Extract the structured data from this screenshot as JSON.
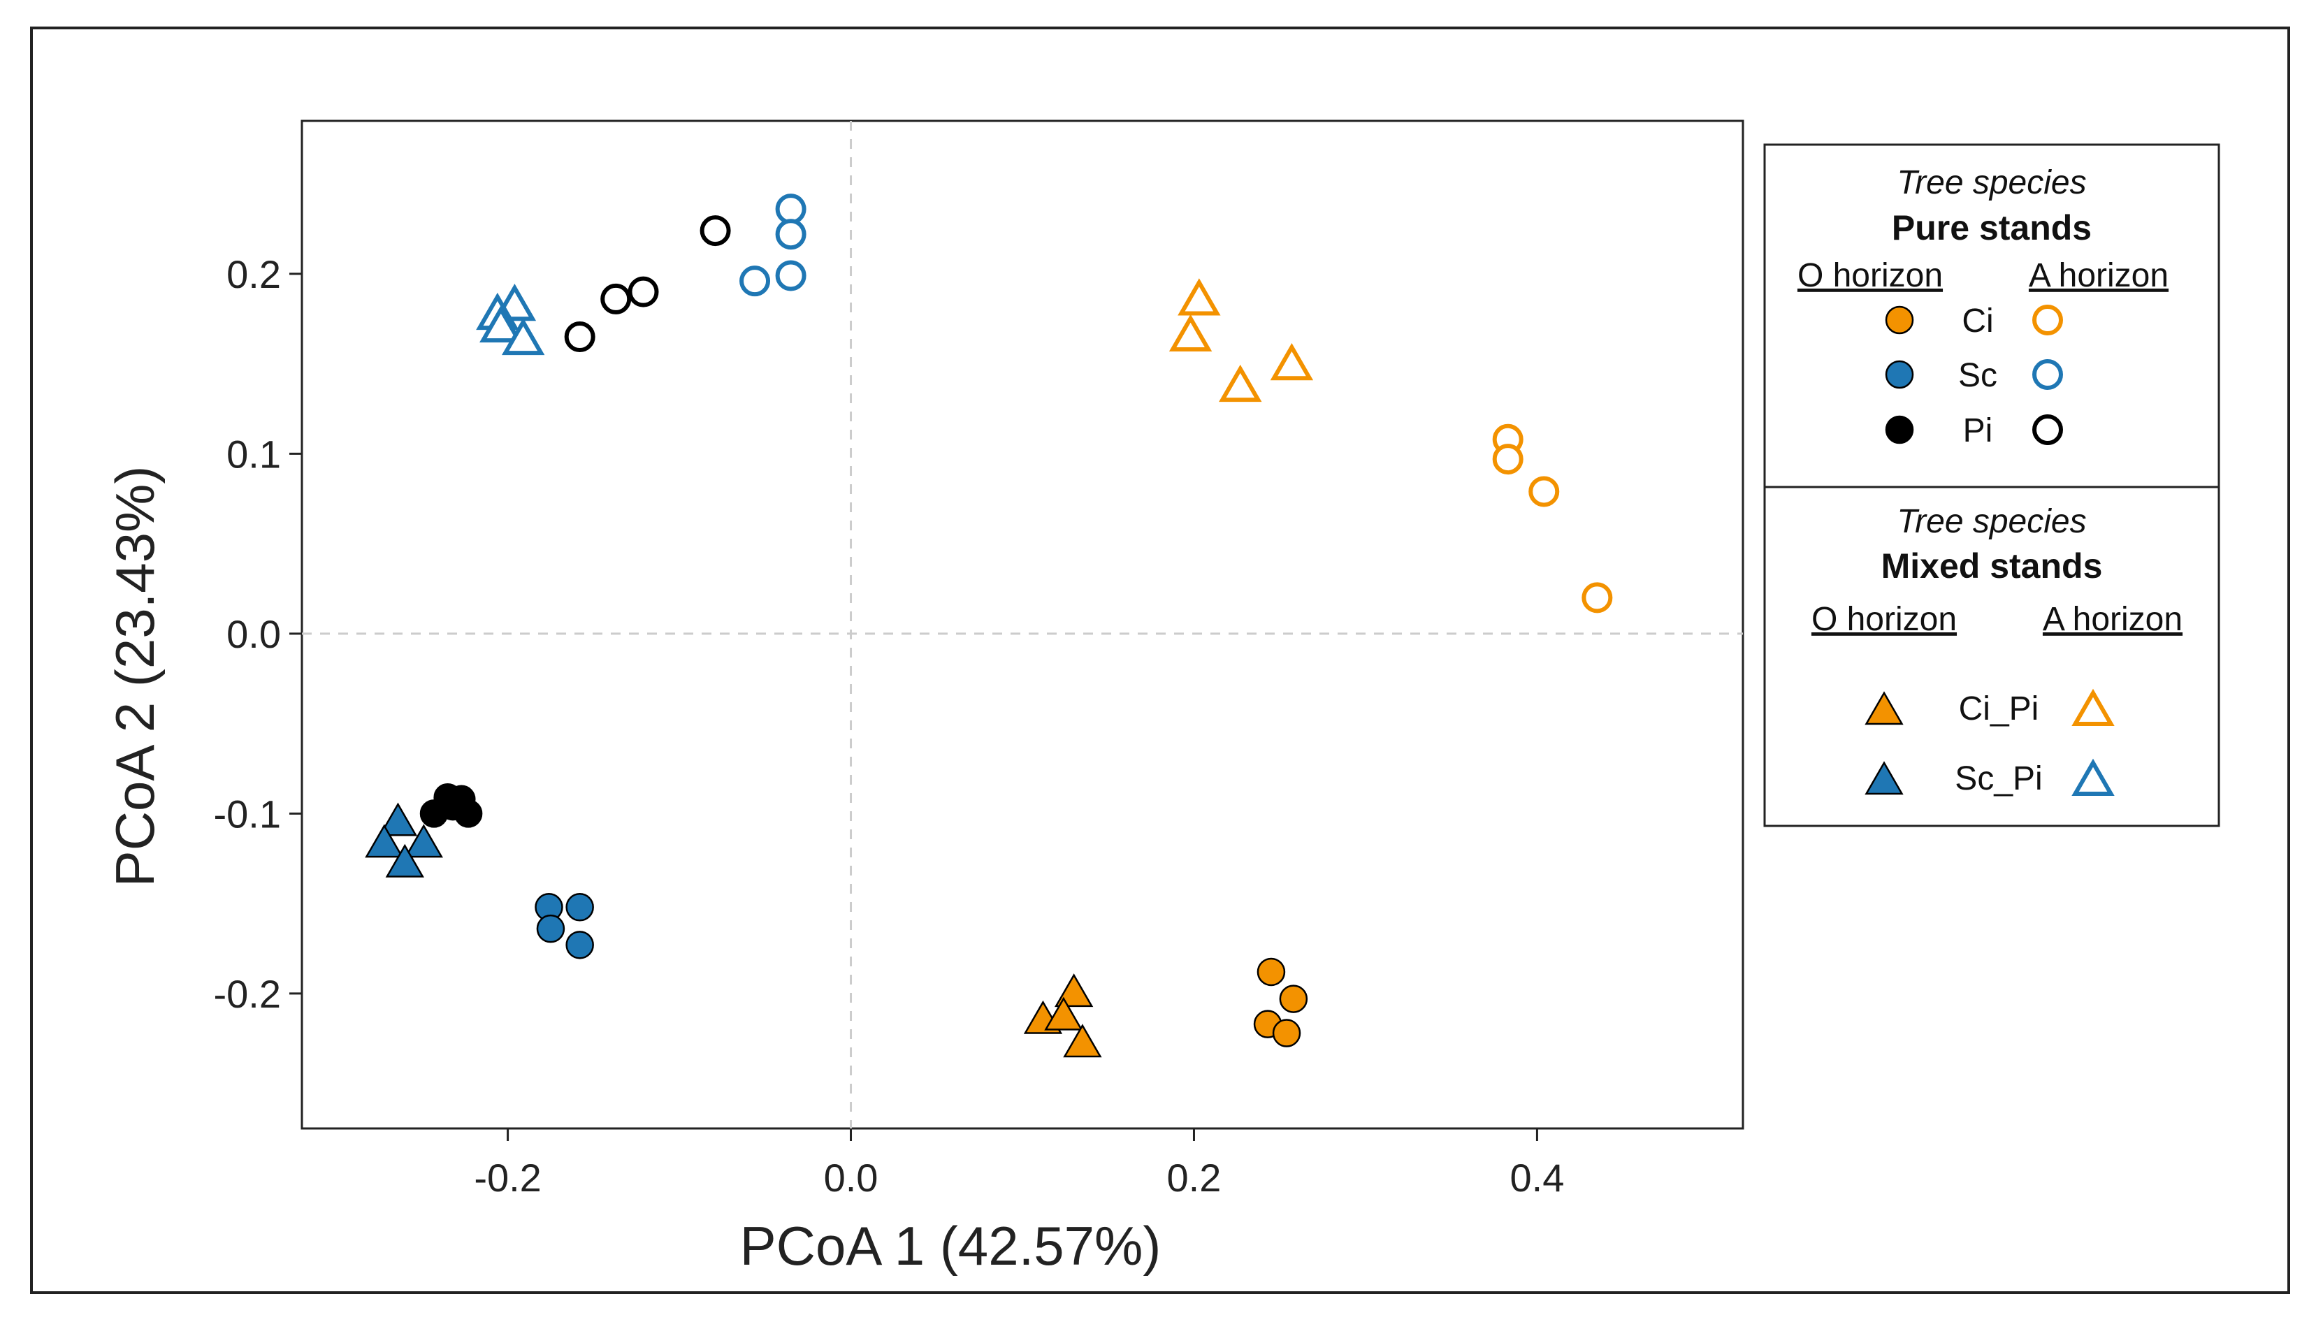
{
  "chart_data": {
    "type": "scatter",
    "xlabel": "PCoA 1 (42.57%)",
    "ylabel": "PCoA 2 (23.43%)",
    "xlim": [
      -0.32,
      0.52
    ],
    "ylim": [
      -0.275,
      0.285
    ],
    "xticks": [
      -0.2,
      0.0,
      0.2,
      0.4
    ],
    "yticks": [
      -0.2,
      -0.1,
      0.0,
      0.1,
      0.2
    ],
    "xtick_labels": [
      "-0.2",
      "0.0",
      "0.2",
      "0.4"
    ],
    "ytick_labels": [
      "-0.2",
      "-0.1",
      "0.0",
      "0.1",
      "0.2"
    ],
    "reference_lines": {
      "x": 0.0,
      "y": 0.0
    },
    "colors": {
      "Ci": "#f39200",
      "Sc": "#1f77b4",
      "Pi": "#000000"
    },
    "series": [
      {
        "name": "Ci O horizon",
        "stand": "Pure",
        "horizon": "O",
        "species": "Ci",
        "marker": "circle",
        "filled": true,
        "points": [
          [
            0.245,
            -0.188
          ],
          [
            0.258,
            -0.203
          ],
          [
            0.243,
            -0.217
          ],
          [
            0.254,
            -0.222
          ]
        ]
      },
      {
        "name": "Ci A horizon",
        "stand": "Pure",
        "horizon": "A",
        "species": "Ci",
        "marker": "circle",
        "filled": false,
        "points": [
          [
            0.383,
            0.108
          ],
          [
            0.383,
            0.097
          ],
          [
            0.404,
            0.079
          ],
          [
            0.435,
            0.02
          ]
        ]
      },
      {
        "name": "Sc O horizon",
        "stand": "Pure",
        "horizon": "O",
        "species": "Sc",
        "marker": "circle",
        "filled": true,
        "points": [
          [
            -0.176,
            -0.152
          ],
          [
            -0.158,
            -0.152
          ],
          [
            -0.175,
            -0.164
          ],
          [
            -0.158,
            -0.173
          ]
        ]
      },
      {
        "name": "Sc A horizon",
        "stand": "Pure",
        "horizon": "A",
        "species": "Sc",
        "marker": "circle",
        "filled": false,
        "points": [
          [
            -0.035,
            0.236
          ],
          [
            -0.035,
            0.222
          ],
          [
            -0.056,
            0.196
          ],
          [
            -0.035,
            0.199
          ]
        ]
      },
      {
        "name": "Pi O horizon",
        "stand": "Pure",
        "horizon": "O",
        "species": "Pi",
        "marker": "circle",
        "filled": true,
        "points": [
          [
            -0.235,
            -0.091
          ],
          [
            -0.227,
            -0.092
          ],
          [
            -0.223,
            -0.1
          ],
          [
            -0.243,
            -0.1
          ],
          [
            -0.232,
            -0.096
          ]
        ]
      },
      {
        "name": "Pi A horizon",
        "stand": "Pure",
        "horizon": "A",
        "species": "Pi",
        "marker": "circle",
        "filled": false,
        "points": [
          [
            -0.079,
            0.224
          ],
          [
            -0.137,
            0.186
          ],
          [
            -0.121,
            0.19
          ],
          [
            -0.158,
            0.165
          ]
        ]
      },
      {
        "name": "Ci_Pi O horizon",
        "stand": "Mixed",
        "horizon": "O",
        "species": "Ci_Pi",
        "marker": "triangle",
        "filled": true,
        "points": [
          [
            0.13,
            -0.2
          ],
          [
            0.112,
            -0.215
          ],
          [
            0.124,
            -0.213
          ],
          [
            0.135,
            -0.228
          ]
        ]
      },
      {
        "name": "Ci_Pi A horizon",
        "stand": "Mixed",
        "horizon": "A",
        "species": "Ci_Pi",
        "marker": "triangle",
        "filled": false,
        "points": [
          [
            0.203,
            0.185
          ],
          [
            0.198,
            0.165
          ],
          [
            0.227,
            0.137
          ],
          [
            0.257,
            0.149
          ]
        ]
      },
      {
        "name": "Sc_Pi O horizon",
        "stand": "Mixed",
        "horizon": "O",
        "species": "Sc_Pi",
        "marker": "triangle",
        "filled": true,
        "points": [
          [
            -0.264,
            -0.105
          ],
          [
            -0.272,
            -0.117
          ],
          [
            -0.249,
            -0.117
          ],
          [
            -0.26,
            -0.128
          ]
        ]
      },
      {
        "name": "Sc_Pi A horizon",
        "stand": "Mixed",
        "horizon": "A",
        "species": "Sc_Pi",
        "marker": "triangle",
        "filled": false,
        "points": [
          [
            -0.196,
            0.182
          ],
          [
            -0.206,
            0.177
          ],
          [
            -0.204,
            0.17
          ],
          [
            -0.191,
            0.163
          ]
        ]
      }
    ],
    "legend": {
      "placement": "right",
      "pure": {
        "title_italic": "Tree species",
        "title_bold": "Pure stands",
        "head_o": "O horizon",
        "head_a": "A horizon",
        "entries": [
          {
            "label": "Ci",
            "species": "Ci"
          },
          {
            "label": "Sc",
            "species": "Sc"
          },
          {
            "label": "Pi",
            "species": "Pi"
          }
        ]
      },
      "mixed": {
        "title_italic": "Tree species",
        "title_bold": "Mixed stands",
        "head_o": "O horizon",
        "head_a": "A horizon",
        "entries": [
          {
            "label": "Ci_Pi",
            "species": "Ci_Pi",
            "color_key": "Ci"
          },
          {
            "label": "Sc_Pi",
            "species": "Sc_Pi",
            "color_key": "Sc"
          }
        ]
      }
    }
  }
}
